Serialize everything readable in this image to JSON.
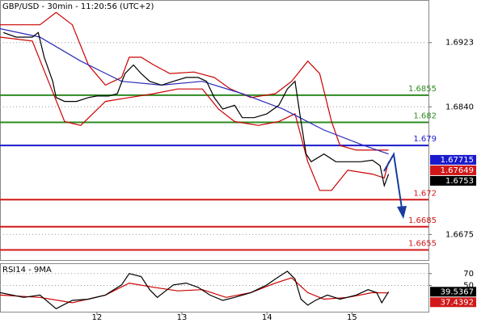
{
  "chart_data": [
    {
      "type": "line",
      "title": "GBP/USD - 30min - 11:20:56 (UTC+2)",
      "xlim": [
        10.86,
        15.9
      ],
      "ylim": [
        1.6642,
        1.6977
      ],
      "yticks": [
        1.6923,
        {
          "value": 1.684,
          "label": "1.6840"
        },
        1.6675
      ],
      "grid": true,
      "series": [
        {
          "color": "#cc0000",
          "x": [
            10.86,
            11.33,
            11.52,
            11.71,
            11.9,
            12.1,
            12.29,
            12.38,
            12.52,
            12.67,
            12.86,
            13.14,
            13.38,
            13.57,
            13.81,
            14.1,
            14.29,
            14.48,
            14.62,
            14.76,
            14.86,
            15.05,
            15.33,
            15.43
          ],
          "values": [
            1.6946,
            1.6946,
            1.6962,
            1.6946,
            1.6894,
            1.6868,
            1.6878,
            1.6904,
            1.6904,
            1.6894,
            1.6883,
            1.6885,
            1.6878,
            1.6863,
            1.6852,
            1.6857,
            1.6873,
            1.6899,
            1.6883,
            1.6821,
            1.679,
            1.6784,
            1.6784,
            1.6784
          ]
        },
        {
          "color": "#cc0000",
          "x": [
            10.86,
            11.24,
            11.43,
            11.62,
            11.81,
            12.1,
            12.38,
            12.67,
            12.95,
            13.24,
            13.43,
            13.62,
            13.9,
            14.14,
            14.33,
            14.48,
            14.62,
            14.76,
            14.95,
            15.24,
            15.38,
            15.43
          ],
          "values": [
            1.693,
            1.6925,
            1.6873,
            1.6821,
            1.6816,
            1.6847,
            1.6852,
            1.6857,
            1.6863,
            1.6863,
            1.6837,
            1.6821,
            1.6816,
            1.6821,
            1.6831,
            1.6769,
            1.6732,
            1.6732,
            1.6758,
            1.6753,
            1.6748,
            1.6769
          ]
        },
        {
          "color": "#2a2ab8",
          "x": [
            10.86,
            11.33,
            11.81,
            12.29,
            12.76,
            13.24,
            13.71,
            14.19,
            14.67,
            15.14,
            15.43
          ],
          "values": [
            1.6941,
            1.693,
            1.6899,
            1.6873,
            1.6868,
            1.6873,
            1.6857,
            1.6837,
            1.681,
            1.679,
            1.6779
          ]
        },
        {
          "color": "#000000",
          "x": [
            10.9,
            11.05,
            11.24,
            11.31,
            11.38,
            11.48,
            11.52,
            11.62,
            11.76,
            11.9,
            12.0,
            12.14,
            12.24,
            12.33,
            12.43,
            12.52,
            12.62,
            12.76,
            12.9,
            13.05,
            13.19,
            13.29,
            13.38,
            13.48,
            13.62,
            13.71,
            13.85,
            14.0,
            14.14,
            14.24,
            14.33,
            14.4,
            14.46,
            14.52,
            14.67,
            14.81,
            14.95,
            15.1,
            15.24,
            15.33,
            15.38,
            15.43
          ],
          "values": [
            1.6936,
            1.693,
            1.693,
            1.6936,
            1.6904,
            1.6873,
            1.6852,
            1.6847,
            1.6847,
            1.6852,
            1.6854,
            1.6854,
            1.6857,
            1.6883,
            1.6894,
            1.6883,
            1.6873,
            1.6868,
            1.6873,
            1.6878,
            1.6878,
            1.6873,
            1.6852,
            1.6837,
            1.6842,
            1.6826,
            1.6826,
            1.6831,
            1.6842,
            1.6863,
            1.6873,
            1.6821,
            1.6779,
            1.6769,
            1.6779,
            1.6769,
            1.6769,
            1.6769,
            1.6771,
            1.6764,
            1.6738,
            1.6753
          ]
        }
      ],
      "levels": [
        {
          "value": 1.6855,
          "color": "#2e8b22"
        },
        {
          "value": 1.682,
          "color": "#2e8b22"
        },
        {
          "value": 1.679,
          "color": "#1a1acc"
        },
        {
          "value": 1.672,
          "color": "#d01818"
        },
        {
          "value": 1.6685,
          "color": "#d01818"
        },
        {
          "value": 1.6655,
          "color": "#d01818"
        }
      ],
      "price_tags": [
        {
          "value": 1.67715,
          "color": "#1a1acc"
        },
        {
          "value": 1.67649,
          "color": "#d01818"
        },
        {
          "value": 1.6753,
          "color": "#000000"
        }
      ]
    },
    {
      "type": "line",
      "title": "RSI14 - 9MA",
      "xlim": [
        10.86,
        15.9
      ],
      "ylim": [
        6,
        86
      ],
      "yticks": [
        70,
        50
      ],
      "xticks": [
        12,
        13,
        14,
        15
      ],
      "grid": true,
      "series": [
        {
          "color": "#cc0000",
          "x": [
            10.86,
            11.33,
            11.71,
            12.1,
            12.38,
            12.67,
            12.95,
            13.24,
            13.52,
            13.81,
            14.1,
            14.29,
            14.48,
            14.67,
            14.95,
            15.24,
            15.43
          ],
          "values": [
            34,
            30,
            21,
            34,
            54,
            47,
            41,
            43,
            30,
            38,
            54,
            63,
            38,
            27,
            30,
            38,
            37.4
          ]
        },
        {
          "color": "#000000",
          "x": [
            10.86,
            11.14,
            11.33,
            11.52,
            11.71,
            11.9,
            12.1,
            12.29,
            12.38,
            12.52,
            12.62,
            12.71,
            12.9,
            13.05,
            13.19,
            13.33,
            13.48,
            13.62,
            13.81,
            14.0,
            14.1,
            14.24,
            14.33,
            14.4,
            14.48,
            14.57,
            14.71,
            14.86,
            15.05,
            15.19,
            15.29,
            15.35,
            15.43
          ],
          "values": [
            38,
            30,
            34,
            11,
            25,
            27,
            34,
            51,
            70,
            65,
            43,
            30,
            51,
            54,
            47,
            34,
            25,
            30,
            38,
            51,
            61,
            74,
            61,
            27,
            17,
            25,
            34,
            27,
            34,
            43,
            38,
            21,
            39.5
          ]
        }
      ],
      "price_tags": [
        {
          "value": 39.5367,
          "color": "#000000"
        },
        {
          "value": 37.4392,
          "color": "#d01818"
        }
      ]
    }
  ]
}
